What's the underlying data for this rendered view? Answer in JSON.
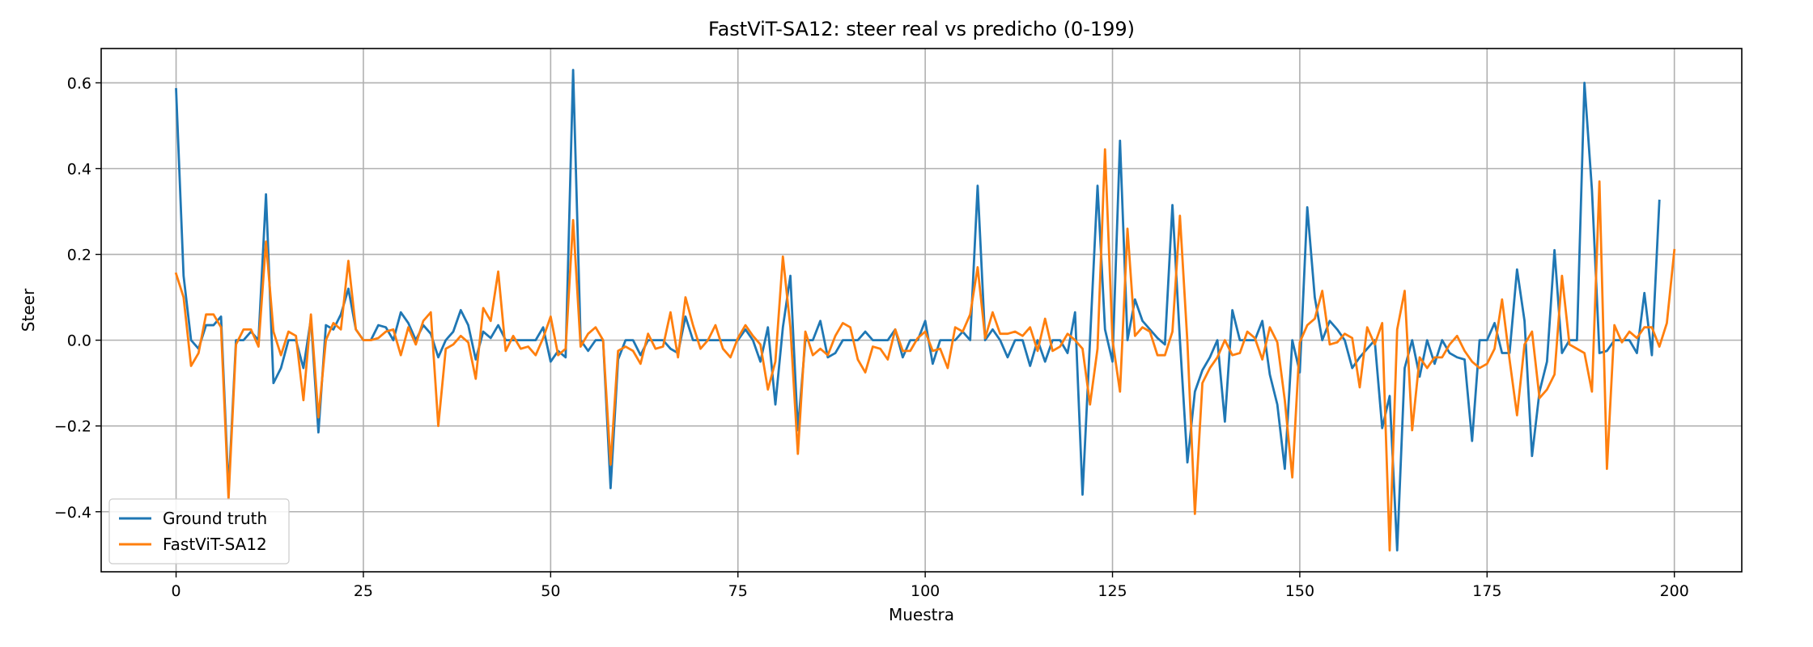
{
  "chart_data": {
    "type": "line",
    "title": "FastViT-SA12: steer real vs predicho (0-199)",
    "xlabel": "Muestra",
    "ylabel": "Steer",
    "xlim": [
      -10,
      209
    ],
    "ylim": [
      -0.54,
      0.68
    ],
    "xticks": [
      0,
      25,
      50,
      75,
      100,
      125,
      150,
      175,
      200
    ],
    "yticks": [
      -0.4,
      -0.2,
      0.0,
      0.2,
      0.4,
      0.6
    ],
    "xtick_labels": [
      "0",
      "25",
      "50",
      "75",
      "100",
      "125",
      "150",
      "175",
      "200"
    ],
    "ytick_labels": [
      "−0.4",
      "−0.2",
      "0.0",
      "0.2",
      "0.4",
      "0.6"
    ],
    "grid": true,
    "legend_position": "lower-left",
    "series": [
      {
        "name": "Ground truth",
        "color": "#1f77b4",
        "values": [
          0.585,
          0.15,
          0,
          -0.02,
          0.035,
          0.035,
          0.055,
          -0.35,
          0,
          0,
          0.02,
          0,
          0.34,
          -0.1,
          -0.065,
          0,
          0,
          -0.065,
          0.05,
          -0.215,
          0.035,
          0.025,
          0.06,
          0.12,
          0.025,
          0,
          0,
          0.035,
          0.03,
          0,
          0.065,
          0.04,
          0,
          0.035,
          0.015,
          -0.04,
          0,
          0.02,
          0.07,
          0.035,
          -0.045,
          0.02,
          0.005,
          0.035,
          0,
          0,
          0,
          0,
          0,
          0.03,
          -0.05,
          -0.025,
          -0.04,
          0.63,
          0,
          -0.025,
          0,
          0,
          -0.345,
          -0.045,
          0,
          0,
          -0.035,
          0,
          0,
          0,
          -0.02,
          -0.03,
          0.055,
          0,
          0,
          0,
          0,
          0,
          0,
          0,
          0.025,
          0,
          -0.05,
          0.03,
          -0.15,
          0.03,
          0.15,
          -0.21,
          0,
          0,
          0.045,
          -0.04,
          -0.03,
          0,
          0,
          0,
          0.02,
          0,
          0,
          0,
          0.025,
          -0.04,
          0,
          0,
          0.045,
          -0.055,
          0,
          0,
          0,
          0.02,
          0,
          0.36,
          0,
          0.025,
          0,
          -0.04,
          0,
          0,
          -0.06,
          0,
          -0.05,
          0,
          0,
          -0.03,
          0.065,
          -0.36,
          0,
          0.36,
          0.025,
          -0.05,
          0.465,
          0,
          0.095,
          0.045,
          0.025,
          0.005,
          -0.01,
          0.315,
          0,
          -0.285,
          -0.12,
          -0.07,
          -0.04,
          0,
          -0.19,
          0.07,
          0,
          0,
          0,
          0.045,
          -0.08,
          -0.15,
          -0.3,
          0,
          -0.075,
          0.31,
          0.1,
          0,
          0.045,
          0.025,
          0,
          -0.065,
          -0.04,
          -0.02,
          0,
          -0.205,
          -0.13,
          -0.49,
          -0.065,
          0,
          -0.085,
          0,
          -0.055,
          0,
          -0.03,
          -0.04,
          -0.045,
          -0.235,
          0,
          0,
          0.04,
          -0.03,
          -0.03,
          0.165,
          0.045,
          -0.27,
          -0.12,
          -0.05,
          0.21,
          -0.03,
          0,
          0,
          0.6,
          0.35,
          -0.03,
          -0.025,
          0,
          0,
          0,
          -0.03,
          0.11,
          -0.035,
          0.325
        ]
      },
      {
        "name": "FastViT-SA12",
        "color": "#ff7f0e",
        "values": [
          0.155,
          0.1,
          -0.06,
          -0.03,
          0.06,
          0.06,
          0.03,
          -0.37,
          -0.01,
          0.025,
          0.025,
          -0.015,
          0.23,
          0.02,
          -0.035,
          0.02,
          0.01,
          -0.14,
          0.06,
          -0.18,
          0,
          0.04,
          0.025,
          0.185,
          0.025,
          0,
          0,
          0.005,
          0.02,
          0.025,
          -0.035,
          0.03,
          -0.01,
          0.045,
          0.065,
          -0.2,
          -0.02,
          -0.01,
          0.01,
          -0.005,
          -0.09,
          0.075,
          0.045,
          0.16,
          -0.025,
          0.01,
          -0.02,
          -0.015,
          -0.035,
          0.005,
          0.055,
          -0.035,
          -0.02,
          0.28,
          -0.015,
          0.015,
          0.03,
          0,
          -0.29,
          -0.025,
          -0.015,
          -0.025,
          -0.055,
          0.015,
          -0.02,
          -0.015,
          0.065,
          -0.04,
          0.1,
          0.035,
          -0.02,
          0,
          0.035,
          -0.02,
          -0.04,
          0.005,
          0.035,
          0.01,
          -0.01,
          -0.115,
          -0.05,
          0.195,
          0.03,
          -0.265,
          0.02,
          -0.035,
          -0.02,
          -0.035,
          0.01,
          0.04,
          0.03,
          -0.045,
          -0.075,
          -0.015,
          -0.02,
          -0.045,
          0.025,
          -0.025,
          -0.025,
          0.005,
          0.02,
          -0.025,
          -0.02,
          -0.065,
          0.03,
          0.02,
          0.06,
          0.17,
          0.005,
          0.065,
          0.015,
          0.015,
          0.02,
          0.01,
          0.03,
          -0.025,
          0.05,
          -0.025,
          -0.015,
          0.015,
          0,
          -0.02,
          -0.15,
          -0.02,
          0.445,
          0,
          -0.12,
          0.26,
          0.01,
          0.03,
          0.02,
          -0.035,
          -0.035,
          0.02,
          0.29,
          -0.005,
          -0.405,
          -0.1,
          -0.065,
          -0.04,
          0,
          -0.035,
          -0.03,
          0.02,
          0.005,
          -0.045,
          0.03,
          -0.005,
          -0.14,
          -0.32,
          -0.005,
          0.035,
          0.05,
          0.115,
          -0.01,
          -0.005,
          0.015,
          0.005,
          -0.11,
          0.03,
          -0.01,
          0.04,
          -0.49,
          0.025,
          0.115,
          -0.21,
          -0.04,
          -0.065,
          -0.04,
          -0.04,
          -0.01,
          0.01,
          -0.025,
          -0.05,
          -0.065,
          -0.055,
          -0.02,
          0.095,
          -0.045,
          -0.175,
          -0.01,
          0.02,
          -0.135,
          -0.115,
          -0.08,
          0.15,
          -0.01,
          -0.02,
          -0.03,
          -0.12,
          0.37,
          -0.3,
          0.035,
          -0.005,
          0.02,
          0.005,
          0.03,
          0.03,
          -0.015,
          0.04,
          0.21
        ]
      }
    ]
  }
}
